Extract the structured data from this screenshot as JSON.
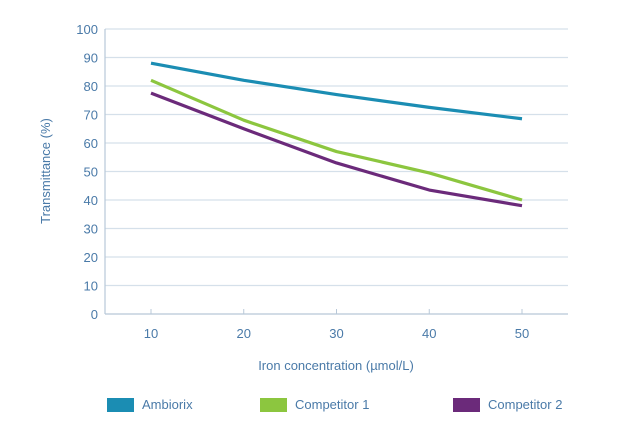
{
  "chart_data": {
    "type": "line",
    "title": "",
    "xlabel": "Iron concentration (µmol/L)",
    "ylabel": "Transmittance (%)",
    "x": [
      10,
      20,
      30,
      40,
      50
    ],
    "x_ticks": [
      "10",
      "20",
      "30",
      "40",
      "50"
    ],
    "y_ticks": [
      "0",
      "10",
      "20",
      "30",
      "40",
      "50",
      "60",
      "70",
      "80",
      "90",
      "100"
    ],
    "ylim": [
      0,
      100
    ],
    "xlim": [
      5,
      55
    ],
    "grid": true,
    "legend_position": "bottom",
    "series": [
      {
        "name": "Ambiorix",
        "color": "#1b8db3",
        "values": [
          88,
          82,
          77,
          72.5,
          68.5
        ]
      },
      {
        "name": "Competitor 1",
        "color": "#8cc63f",
        "values": [
          82,
          68,
          57,
          49.5,
          40
        ]
      },
      {
        "name": "Competitor 2",
        "color": "#6b2a7a",
        "values": [
          77.5,
          65,
          53,
          43.5,
          38
        ]
      }
    ]
  },
  "colors": {
    "axis": "#b8c8d8",
    "grid": "#d5e0ea",
    "text": "#4a7aa8"
  }
}
